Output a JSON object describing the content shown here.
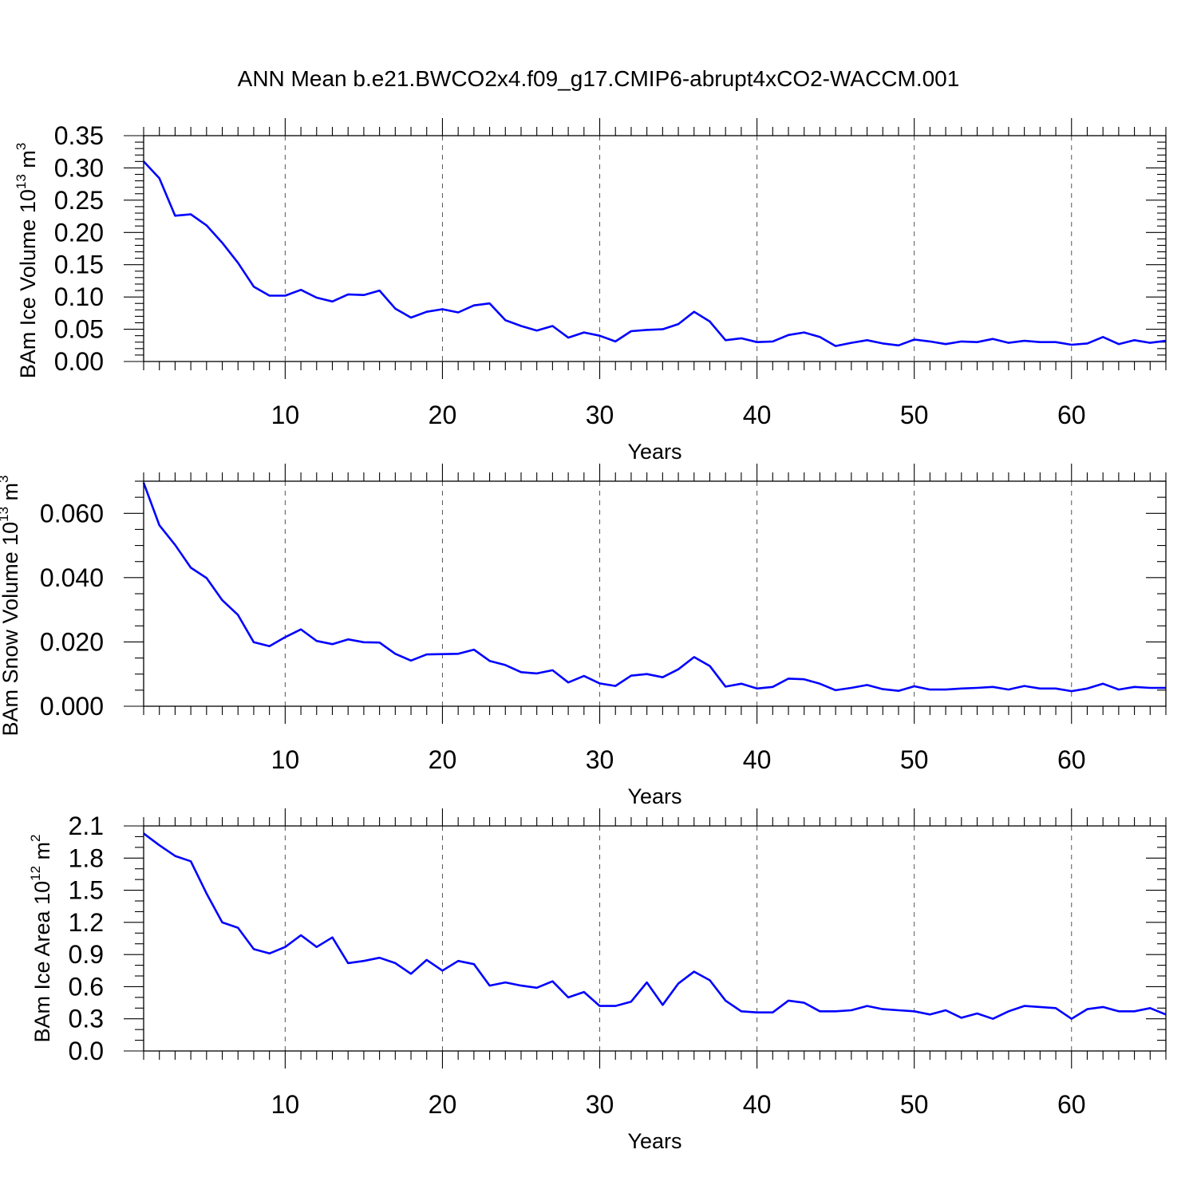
{
  "figure_title": "ANN Mean b.e21.BWCO2x4.f09_g17.CMIP6-abrupt4xCO2-WACCM.001",
  "colors": {
    "line": "#0000ff",
    "axis": "#000000",
    "grid": "#555555"
  },
  "chart_data": [
    {
      "type": "line",
      "title": "",
      "ylabel_main": "BAm Ice Volume 10",
      "ylabel_exponent": "13",
      "ylabel_unit": " m",
      "ylabel_power": "3",
      "xlabel": "Years",
      "xlim": [
        1,
        66
      ],
      "ylim": [
        0,
        0.35
      ],
      "xticks": [
        10,
        20,
        30,
        40,
        50,
        60
      ],
      "xtick_labels": [
        "10",
        "20",
        "30",
        "40",
        "50",
        "60"
      ],
      "yticks": [
        0,
        0.05,
        0.1,
        0.15,
        0.2,
        0.25,
        0.3,
        0.35
      ],
      "ytick_labels": [
        "0.00",
        "0.05",
        "0.10",
        "0.15",
        "0.20",
        "0.25",
        "0.30",
        "0.35"
      ],
      "y_minor_step": 0.01,
      "grid_x": true,
      "series": [
        {
          "name": "BAm Ice Volume",
          "color": "#0000ff",
          "x": [
            1,
            2,
            3,
            4,
            5,
            6,
            7,
            8,
            9,
            10,
            11,
            12,
            13,
            14,
            15,
            16,
            17,
            18,
            19,
            20,
            21,
            22,
            23,
            24,
            25,
            26,
            27,
            28,
            29,
            30,
            31,
            32,
            33,
            34,
            35,
            36,
            37,
            38,
            39,
            40,
            41,
            42,
            43,
            44,
            45,
            46,
            47,
            48,
            49,
            50,
            51,
            52,
            53,
            54,
            55,
            56,
            57,
            58,
            59,
            60,
            61,
            62,
            63,
            64,
            65,
            66
          ],
          "values": [
            0.31,
            0.284,
            0.226,
            0.228,
            0.211,
            0.184,
            0.153,
            0.116,
            0.102,
            0.102,
            0.111,
            0.099,
            0.093,
            0.104,
            0.103,
            0.11,
            0.082,
            0.068,
            0.077,
            0.081,
            0.076,
            0.087,
            0.09,
            0.064,
            0.055,
            0.048,
            0.055,
            0.037,
            0.045,
            0.04,
            0.031,
            0.047,
            0.049,
            0.05,
            0.058,
            0.077,
            0.062,
            0.033,
            0.036,
            0.03,
            0.031,
            0.041,
            0.045,
            0.038,
            0.024,
            0.029,
            0.033,
            0.028,
            0.025,
            0.034,
            0.031,
            0.027,
            0.031,
            0.03,
            0.035,
            0.029,
            0.032,
            0.03,
            0.03,
            0.026,
            0.028,
            0.038,
            0.027,
            0.033,
            0.029,
            0.032
          ]
        }
      ]
    },
    {
      "type": "line",
      "title": "",
      "ylabel_main": "BAm Snow Volume 10",
      "ylabel_exponent": "13",
      "ylabel_unit": " m",
      "ylabel_power": "3",
      "xlabel": "Years",
      "xlim": [
        1,
        66
      ],
      "ylim": [
        0,
        0.07
      ],
      "xticks": [
        10,
        20,
        30,
        40,
        50,
        60
      ],
      "xtick_labels": [
        "10",
        "20",
        "30",
        "40",
        "50",
        "60"
      ],
      "yticks": [
        0,
        0.02,
        0.04,
        0.06
      ],
      "ytick_labels": [
        "0.000",
        "0.020",
        "0.040",
        "0.060"
      ],
      "y_minor_step": 0.005,
      "grid_x": true,
      "series": [
        {
          "name": "BAm Snow Volume",
          "color": "#0000ff",
          "x": [
            1,
            2,
            3,
            4,
            5,
            6,
            7,
            8,
            9,
            10,
            11,
            12,
            13,
            14,
            15,
            16,
            17,
            18,
            19,
            20,
            21,
            22,
            23,
            24,
            25,
            26,
            27,
            28,
            29,
            30,
            31,
            32,
            33,
            34,
            35,
            36,
            37,
            38,
            39,
            40,
            41,
            42,
            43,
            44,
            45,
            46,
            47,
            48,
            49,
            50,
            51,
            52,
            53,
            54,
            55,
            56,
            57,
            58,
            59,
            60,
            61,
            62,
            63,
            64,
            65,
            66
          ],
          "values": [
            0.0695,
            0.0563,
            0.0502,
            0.0431,
            0.0399,
            0.033,
            0.0284,
            0.0199,
            0.0187,
            0.0215,
            0.0239,
            0.0203,
            0.0193,
            0.0208,
            0.0199,
            0.0198,
            0.0163,
            0.0142,
            0.0161,
            0.0162,
            0.0163,
            0.0176,
            0.0141,
            0.0128,
            0.0106,
            0.0102,
            0.0112,
            0.0074,
            0.0094,
            0.0071,
            0.0063,
            0.0095,
            0.01,
            0.009,
            0.0115,
            0.0153,
            0.0125,
            0.0061,
            0.007,
            0.0055,
            0.006,
            0.0086,
            0.0084,
            0.007,
            0.005,
            0.0057,
            0.0066,
            0.0053,
            0.0048,
            0.0062,
            0.0052,
            0.0052,
            0.0055,
            0.0057,
            0.006,
            0.0052,
            0.0063,
            0.0055,
            0.0055,
            0.0047,
            0.0055,
            0.007,
            0.0052,
            0.006,
            0.0057,
            0.0057
          ]
        }
      ]
    },
    {
      "type": "line",
      "title": "",
      "ylabel_main": "BAm Ice Area 10",
      "ylabel_exponent": "12",
      "ylabel_unit": " m",
      "ylabel_power": "2",
      "xlabel": "Years",
      "xlim": [
        1,
        66
      ],
      "ylim": [
        0,
        2.1
      ],
      "xticks": [
        10,
        20,
        30,
        40,
        50,
        60
      ],
      "xtick_labels": [
        "10",
        "20",
        "30",
        "40",
        "50",
        "60"
      ],
      "yticks": [
        0,
        0.3,
        0.6,
        0.9,
        1.2,
        1.5,
        1.8,
        2.1
      ],
      "ytick_labels": [
        "0.0",
        "0.3",
        "0.6",
        "0.9",
        "1.2",
        "1.5",
        "1.8",
        "2.1"
      ],
      "y_minor_step": 0.1,
      "grid_x": true,
      "series": [
        {
          "name": "BAm Ice Area",
          "color": "#0000ff",
          "x": [
            1,
            2,
            3,
            4,
            5,
            6,
            7,
            8,
            9,
            10,
            11,
            12,
            13,
            14,
            15,
            16,
            17,
            18,
            19,
            20,
            21,
            22,
            23,
            24,
            25,
            26,
            27,
            28,
            29,
            30,
            31,
            32,
            33,
            34,
            35,
            36,
            37,
            38,
            39,
            40,
            41,
            42,
            43,
            44,
            45,
            46,
            47,
            48,
            49,
            50,
            51,
            52,
            53,
            54,
            55,
            56,
            57,
            58,
            59,
            60,
            61,
            62,
            63,
            64,
            65,
            66
          ],
          "values": [
            2.03,
            1.92,
            1.82,
            1.77,
            1.47,
            1.2,
            1.15,
            0.95,
            0.91,
            0.97,
            1.08,
            0.97,
            1.06,
            0.82,
            0.84,
            0.87,
            0.82,
            0.72,
            0.85,
            0.75,
            0.84,
            0.81,
            0.61,
            0.64,
            0.61,
            0.59,
            0.65,
            0.5,
            0.55,
            0.42,
            0.42,
            0.46,
            0.64,
            0.43,
            0.63,
            0.74,
            0.66,
            0.47,
            0.37,
            0.36,
            0.36,
            0.47,
            0.45,
            0.37,
            0.37,
            0.38,
            0.42,
            0.39,
            0.38,
            0.37,
            0.34,
            0.38,
            0.31,
            0.35,
            0.3,
            0.37,
            0.42,
            0.41,
            0.4,
            0.3,
            0.39,
            0.41,
            0.37,
            0.37,
            0.4,
            0.34
          ]
        }
      ]
    }
  ]
}
